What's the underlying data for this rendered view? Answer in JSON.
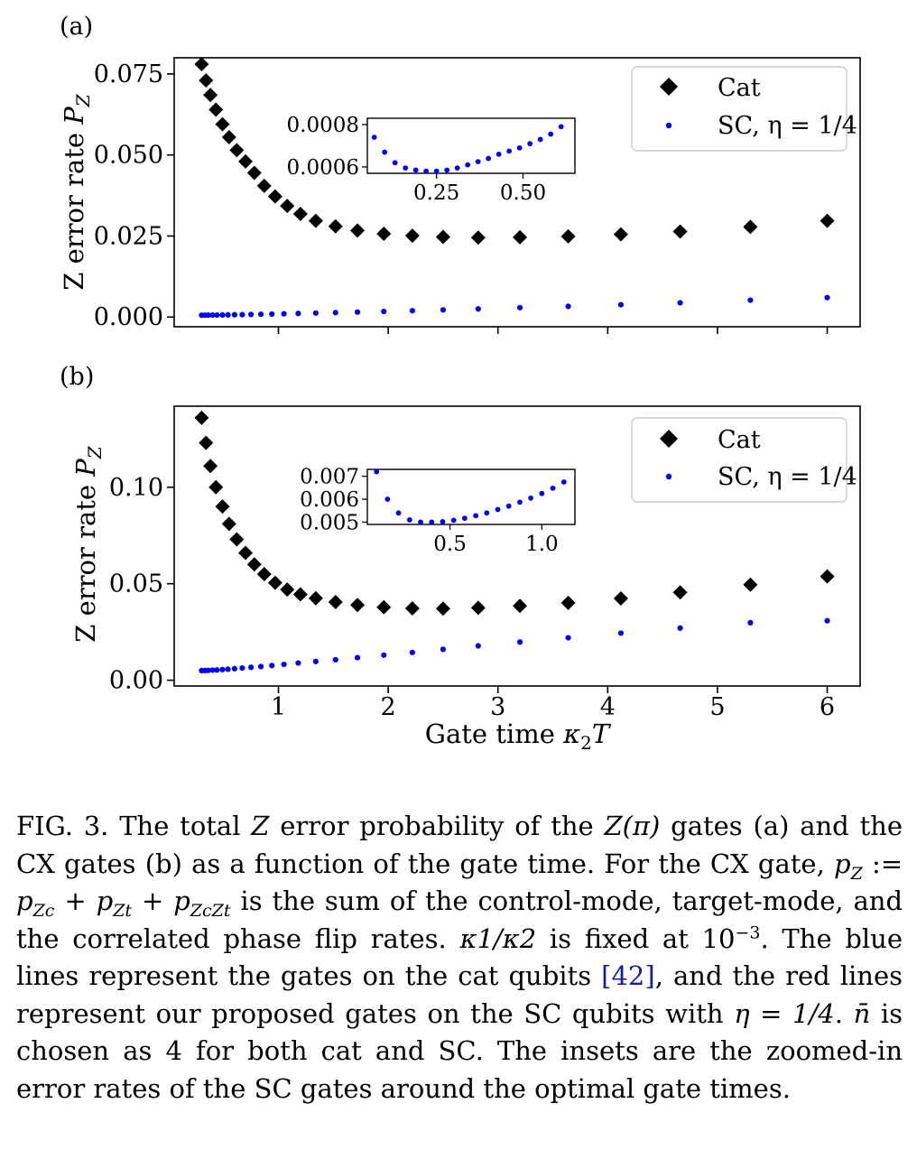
{
  "figure": {
    "panels": [
      {
        "tag": "(a)",
        "ylabel_main": "Z error rate",
        "ylabel_sym": "P",
        "ylabel_sub": "Z",
        "yticks": [
          "0.000",
          "0.025",
          "0.050",
          "0.075"
        ],
        "legend": {
          "cat": "Cat",
          "sc": "SC, η = 1/4"
        },
        "inset_yticks": [
          "0.0006",
          "0.0008"
        ],
        "inset_xticks": [
          "0.25",
          "0.50"
        ]
      },
      {
        "tag": "(b)",
        "ylabel_main": "Z error rate",
        "ylabel_sym": "P",
        "ylabel_sub": "Z",
        "yticks": [
          "0.00",
          "0.05",
          "0.10"
        ],
        "legend": {
          "cat": "Cat",
          "sc": "SC, η = 1/4"
        },
        "inset_yticks": [
          "0.005",
          "0.006",
          "0.007"
        ],
        "inset_xticks": [
          "0.5",
          "1.0"
        ]
      }
    ],
    "xticks": [
      "1",
      "2",
      "3",
      "4",
      "5",
      "6"
    ],
    "xlabel_main": "Gate time",
    "xlabel_sym": "κ",
    "xlabel_sub": "2",
    "xlabel_tail": "T"
  },
  "chart_data": [
    {
      "type": "scatter",
      "panel": "(a)",
      "xlim": [
        0.05,
        6.3
      ],
      "ylim": [
        -0.003,
        0.08
      ],
      "series": [
        {
          "name": "Cat",
          "marker": "diamond",
          "color": "#000000",
          "x": [
            0.3,
            0.34,
            0.38,
            0.43,
            0.49,
            0.55,
            0.62,
            0.7,
            0.78,
            0.87,
            0.97,
            1.08,
            1.2,
            1.34,
            1.52,
            1.72,
            1.96,
            2.22,
            2.5,
            2.82,
            3.2,
            3.64,
            4.12,
            4.66,
            5.3,
            6.0
          ],
          "y": [
            0.078,
            0.073,
            0.0685,
            0.064,
            0.0595,
            0.0555,
            0.0515,
            0.048,
            0.0445,
            0.0405,
            0.0372,
            0.0343,
            0.0318,
            0.0297,
            0.028,
            0.0267,
            0.0257,
            0.0251,
            0.0247,
            0.0245,
            0.0246,
            0.0249,
            0.0255,
            0.0264,
            0.0278,
            0.0297
          ]
        },
        {
          "name": "SC, η = 1/4",
          "marker": "dot",
          "color": "#0000ee",
          "x": [
            0.3,
            0.33,
            0.36,
            0.4,
            0.44,
            0.49,
            0.54,
            0.6,
            0.67,
            0.75,
            0.84,
            0.94,
            1.05,
            1.18,
            1.34,
            1.52,
            1.72,
            1.96,
            2.22,
            2.5,
            2.82,
            3.2,
            3.64,
            4.12,
            4.66,
            5.3,
            6.0
          ],
          "y": [
            0.00057,
            0.00057,
            0.00058,
            0.00059,
            0.00061,
            0.00063,
            0.00066,
            0.0007,
            0.00074,
            0.00079,
            0.00085,
            0.00092,
            0.001,
            0.0011,
            0.00122,
            0.00136,
            0.00152,
            0.00172,
            0.00195,
            0.0022,
            0.0025,
            0.0029,
            0.0033,
            0.0038,
            0.0044,
            0.0052,
            0.006
          ]
        }
      ],
      "inset": {
        "xlim": [
          0.05,
          0.65
        ],
        "ylim": [
          0.00057,
          0.00083
        ],
        "x": [
          0.07,
          0.1,
          0.13,
          0.16,
          0.19,
          0.22,
          0.25,
          0.28,
          0.31,
          0.34,
          0.37,
          0.4,
          0.43,
          0.46,
          0.49,
          0.52,
          0.55,
          0.58,
          0.61
        ],
        "y": [
          0.00074,
          0.00067,
          0.00062,
          0.000595,
          0.000585,
          0.00058,
          0.00058,
          0.000585,
          0.000595,
          0.00061,
          0.000625,
          0.00064,
          0.00066,
          0.000675,
          0.00069,
          0.00071,
          0.00073,
          0.000755,
          0.00079
        ]
      }
    },
    {
      "type": "scatter",
      "panel": "(b)",
      "xlim": [
        0.05,
        6.3
      ],
      "ylim": [
        -0.003,
        0.142
      ],
      "series": [
        {
          "name": "Cat",
          "marker": "diamond",
          "color": "#000000",
          "x": [
            0.3,
            0.34,
            0.38,
            0.43,
            0.49,
            0.55,
            0.62,
            0.7,
            0.78,
            0.87,
            0.97,
            1.08,
            1.2,
            1.34,
            1.52,
            1.72,
            1.96,
            2.22,
            2.5,
            2.82,
            3.2,
            3.64,
            4.12,
            4.66,
            5.3,
            6.0
          ],
          "y": [
            0.136,
            0.123,
            0.111,
            0.1,
            0.09,
            0.081,
            0.073,
            0.066,
            0.06,
            0.055,
            0.0505,
            0.047,
            0.0445,
            0.0425,
            0.0405,
            0.039,
            0.0378,
            0.0372,
            0.0371,
            0.0375,
            0.0385,
            0.0401,
            0.0424,
            0.0455,
            0.0495,
            0.0538
          ]
        },
        {
          "name": "SC, η = 1/4",
          "marker": "dot",
          "color": "#0000ee",
          "x": [
            0.3,
            0.33,
            0.36,
            0.4,
            0.44,
            0.49,
            0.54,
            0.6,
            0.67,
            0.75,
            0.84,
            0.94,
            1.05,
            1.18,
            1.34,
            1.52,
            1.72,
            1.96,
            2.22,
            2.5,
            2.82,
            3.2,
            3.64,
            4.12,
            4.66,
            5.3,
            6.0
          ],
          "y": [
            0.005,
            0.005,
            0.0051,
            0.0052,
            0.0053,
            0.0055,
            0.0057,
            0.006,
            0.0063,
            0.0067,
            0.0071,
            0.0076,
            0.0082,
            0.0089,
            0.0097,
            0.0106,
            0.0117,
            0.013,
            0.0144,
            0.016,
            0.0178,
            0.0198,
            0.022,
            0.0244,
            0.027,
            0.0298,
            0.0308
          ]
        }
      ],
      "inset": {
        "xlim": [
          0.05,
          1.18
        ],
        "ylim": [
          0.0049,
          0.0073
        ],
        "x": [
          0.1,
          0.16,
          0.22,
          0.28,
          0.34,
          0.4,
          0.46,
          0.52,
          0.58,
          0.64,
          0.7,
          0.76,
          0.82,
          0.88,
          0.94,
          1.0,
          1.06,
          1.12
        ],
        "y": [
          0.0072,
          0.006,
          0.0054,
          0.0051,
          0.005,
          0.005,
          0.00502,
          0.00508,
          0.00517,
          0.00528,
          0.0054,
          0.00555,
          0.0057,
          0.00587,
          0.00605,
          0.00625,
          0.00648,
          0.00675
        ]
      }
    }
  ],
  "caption": {
    "fig_label": "FIG. 3.",
    "s1a": "The total",
    "z": "Z",
    "s1b": "error probability of the",
    "zpi": "Z(π)",
    "s1c": "gates (a) and the CX gates (b) as a function of the gate time. For the CX gate,",
    "eq_pz": "p",
    "eq_pz_sub": "Z",
    "eq_def": ":=",
    "eq_p1": "p",
    "eq_p1_sub": "Zc",
    "eq_plus1": "+",
    "eq_p2": "p",
    "eq_p2_sub": "Zt",
    "eq_plus2": "+",
    "eq_p3": "p",
    "eq_p3_sub": "ZcZt",
    "s2": "is the sum of the control-mode, target-mode, and the correlated phase flip rates.",
    "kappa_ratio": "κ1/κ2",
    "s3a": "is fixed at",
    "ten": "10",
    "ten_exp": "−3",
    "s3b": ". The blue lines represent the gates on the cat qubits",
    "ref": "[42]",
    "s4a": ", and the red lines represent our proposed gates on the SC qubits with",
    "eta_eq": "η = 1/4",
    "s4b": ".",
    "nbar": "n̄",
    "s5": "is chosen as 4 for both cat and SC. The insets are the zoomed-in error rates of the SC gates around the optimal gate times."
  }
}
